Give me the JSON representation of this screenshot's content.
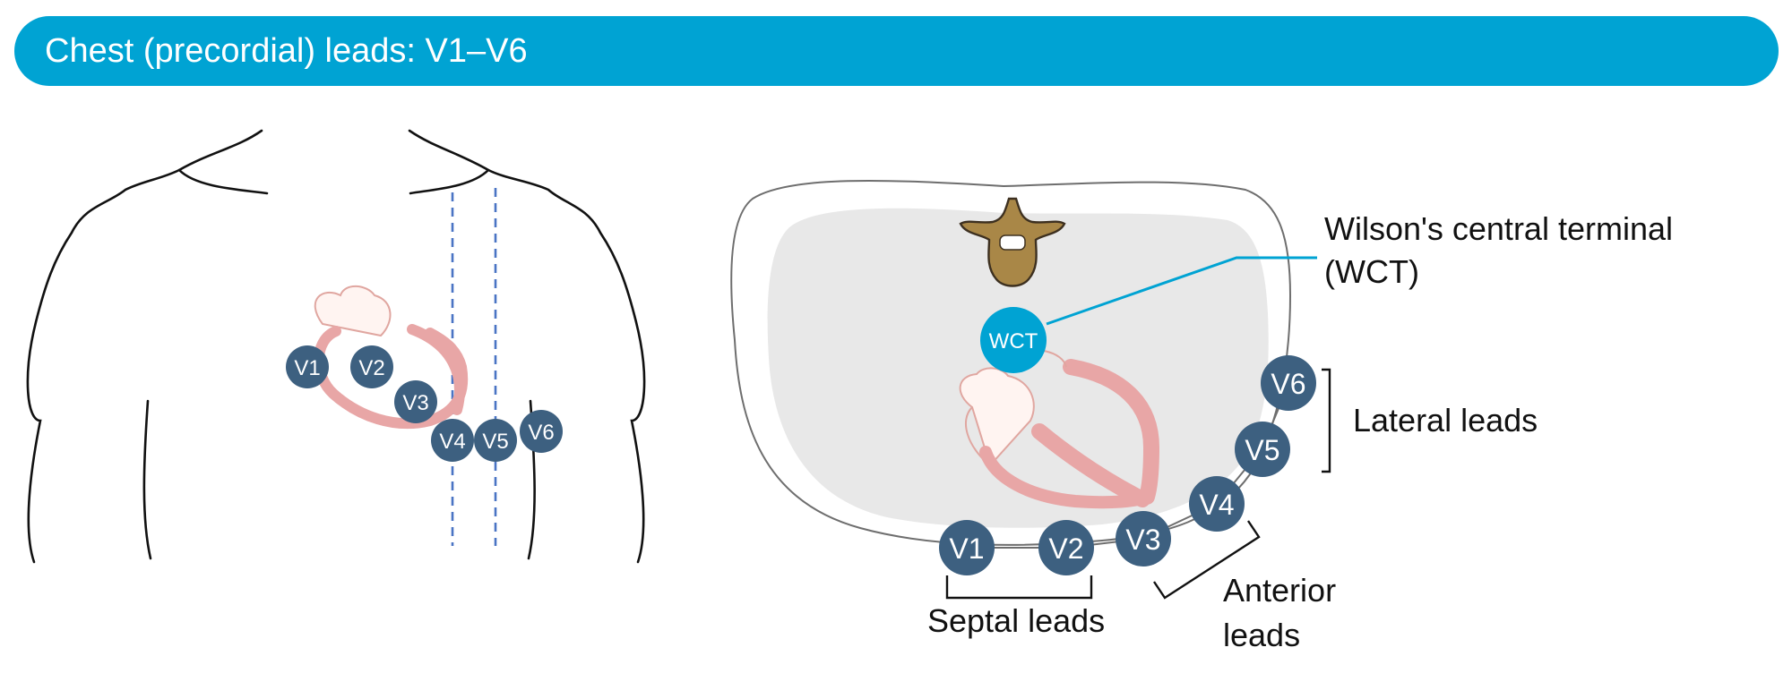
{
  "header": {
    "title": "Chest (precordial) leads: V1–V6"
  },
  "colors": {
    "banner": "#00a3d3",
    "electrode": "#3d6080",
    "wct": "#00a3d3",
    "heart": "#e8a6a6",
    "guide_line": "#4a74c4"
  },
  "front_view": {
    "electrodes": [
      "V1",
      "V2",
      "V3",
      "V4",
      "V5",
      "V6"
    ]
  },
  "cross_section": {
    "wct_node": "WCT",
    "electrodes": [
      "V1",
      "V2",
      "V3",
      "V4",
      "V5",
      "V6"
    ],
    "labels": {
      "wct_line1": "Wilson's central terminal",
      "wct_line2": "(WCT)",
      "lateral": "Lateral leads",
      "anterior_line1": "Anterior",
      "anterior_line2": "leads",
      "septal": "Septal leads"
    }
  }
}
